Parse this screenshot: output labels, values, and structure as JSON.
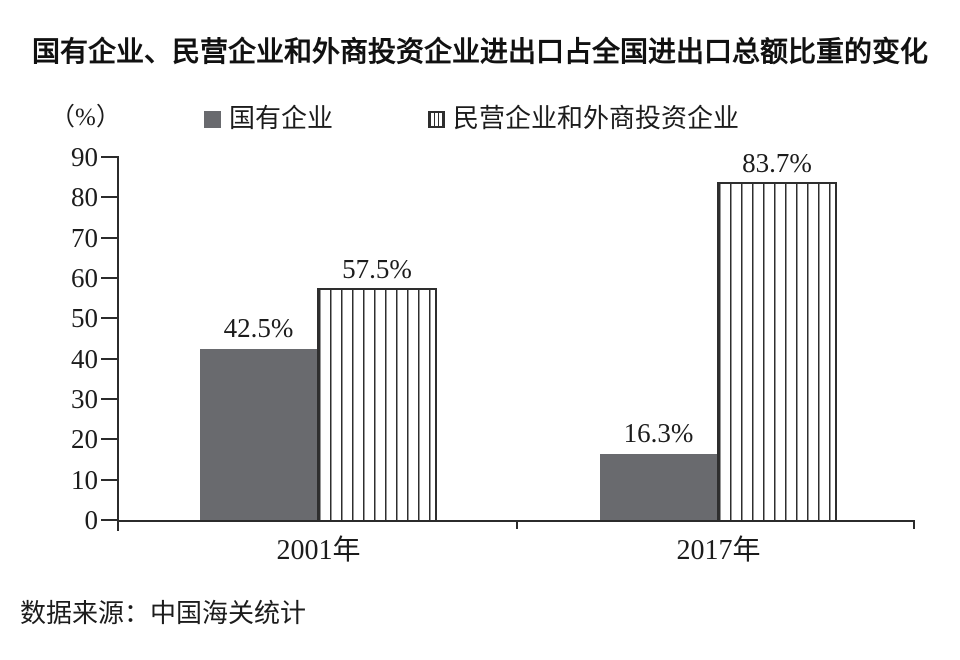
{
  "chart_data": {
    "type": "bar",
    "title": "国有企业、民营企业和外商投资企业进出口占全国进出口总额比重的变化",
    "unit_label": "（%）",
    "categories": [
      "2001年",
      "2017年"
    ],
    "series": [
      {
        "name": "国有企业",
        "values": [
          42.5,
          16.3
        ],
        "style": "solid"
      },
      {
        "name": "民营企业和外商投资企业",
        "values": [
          57.5,
          83.7
        ],
        "style": "striped"
      }
    ],
    "data_labels": {
      "solid": [
        "42.5%",
        "16.3%"
      ],
      "striped": [
        "57.5%",
        "83.7%"
      ]
    },
    "ylim": [
      0,
      90
    ],
    "yticks": [
      0,
      10,
      20,
      30,
      40,
      50,
      60,
      70,
      80,
      90
    ],
    "grid": false,
    "legend_position": "top",
    "source": "数据来源：中国海关统计"
  },
  "colors": {
    "solid_bar": "#696a6e",
    "stripe_line": "#2e2e2e",
    "axis": "#2b2b2b",
    "text": "#1c1c1c"
  }
}
